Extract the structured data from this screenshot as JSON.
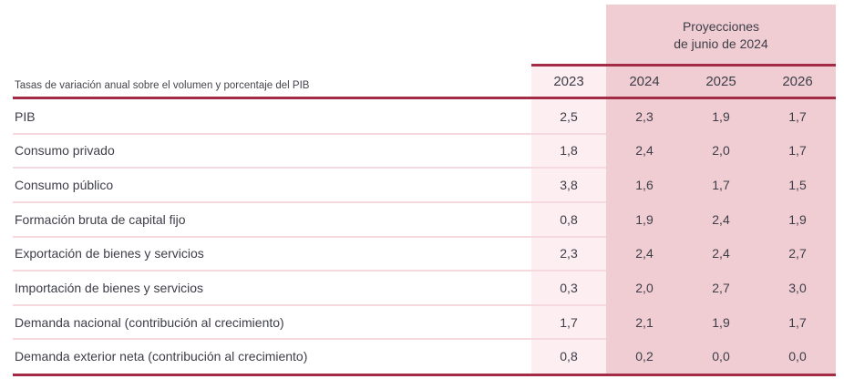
{
  "chart_data": {
    "type": "table",
    "title": "Proyecciones de junio de 2024",
    "caption": "Tasas de variación anual sobre el volumen y porcentaje del PIB",
    "columns": [
      "2023",
      "2024",
      "2025",
      "2026"
    ],
    "projection_columns": [
      "2024",
      "2025",
      "2026"
    ],
    "rows": [
      {
        "label": "PIB",
        "values": [
          "2,5",
          "2,3",
          "1,9",
          "1,7"
        ]
      },
      {
        "label": "Consumo privado",
        "values": [
          "1,8",
          "2,4",
          "2,0",
          "1,7"
        ]
      },
      {
        "label": "Consumo público",
        "values": [
          "3,8",
          "1,6",
          "1,7",
          "1,5"
        ]
      },
      {
        "label": "Formación bruta de capital fijo",
        "values": [
          "0,8",
          "1,9",
          "2,4",
          "1,9"
        ]
      },
      {
        "label": "Exportación de bienes y servicios",
        "values": [
          "2,3",
          "2,4",
          "2,4",
          "2,7"
        ]
      },
      {
        "label": "Importación de bienes y servicios",
        "values": [
          "0,3",
          "2,0",
          "2,7",
          "3,0"
        ]
      },
      {
        "label": "Demanda nacional (contribución al crecimiento)",
        "values": [
          "1,7",
          "2,1",
          "1,9",
          "1,7"
        ]
      },
      {
        "label": "Demanda exterior neta (contribución al crecimiento)",
        "values": [
          "0,8",
          "0,2",
          "0,0",
          "0,0"
        ]
      }
    ]
  },
  "header": {
    "group_label_line1": "Proyecciones",
    "group_label_line2": "de junio de 2024",
    "years": [
      "2023",
      "2024",
      "2025",
      "2026"
    ],
    "caption": "Tasas de variación anual sobre el volumen y porcentaje del PIB"
  },
  "colors": {
    "projection_band": "#f0cdd3",
    "actual_column": "#fdeef2",
    "dark_red_rule": "#a32b45",
    "row_separator": "#f5d9de",
    "text": "#3e3e48"
  }
}
